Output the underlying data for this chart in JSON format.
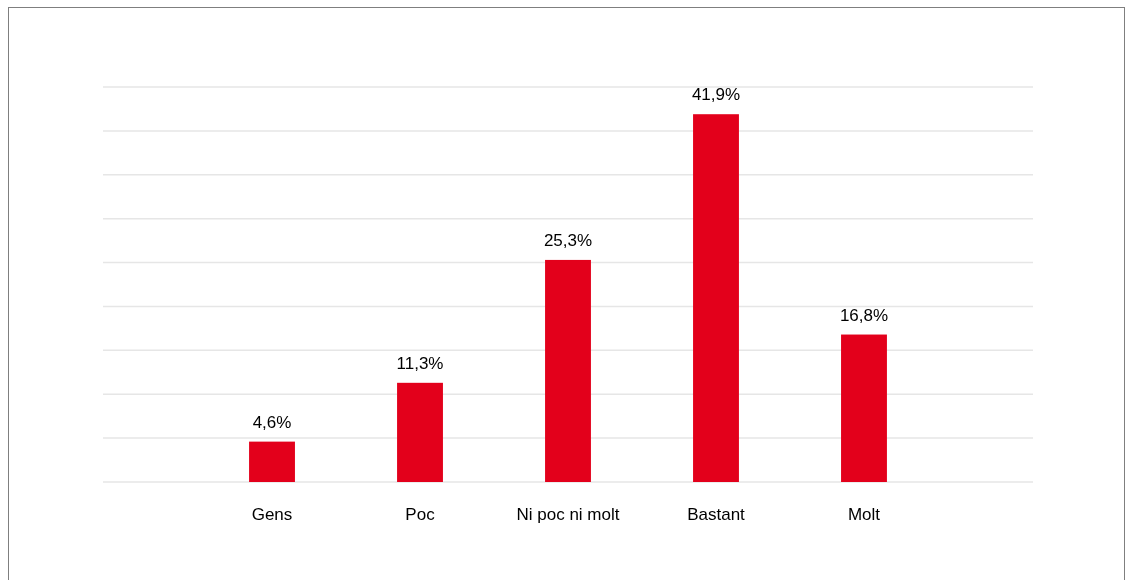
{
  "chart_data": {
    "type": "bar",
    "categories": [
      "Gens",
      "Poc",
      "Ni poc ni molt",
      "Bastant",
      "Molt"
    ],
    "values": [
      4.6,
      11.3,
      25.3,
      41.9,
      16.8
    ],
    "color": "#e3001b",
    "value_labels": [
      "4,6%",
      "11,3%",
      "25,3%",
      "41,9%",
      "16,8%"
    ],
    "ylim": [
      0,
      45
    ],
    "yticks": [
      {
        "value": 0,
        "label": null
      },
      {
        "value": 5,
        "label": null
      },
      {
        "value": 10,
        "label": null
      },
      {
        "value": 15,
        "label": null
      },
      {
        "value": 20,
        "label": null
      },
      {
        "value": 25,
        "label": null
      },
      {
        "value": 30,
        "label": null
      },
      {
        "value": 35,
        "label": null
      },
      {
        "value": 40,
        "label": null
      },
      {
        "value": 45,
        "label": null
      }
    ],
    "grid": "y",
    "tick_labels": "x"
  }
}
